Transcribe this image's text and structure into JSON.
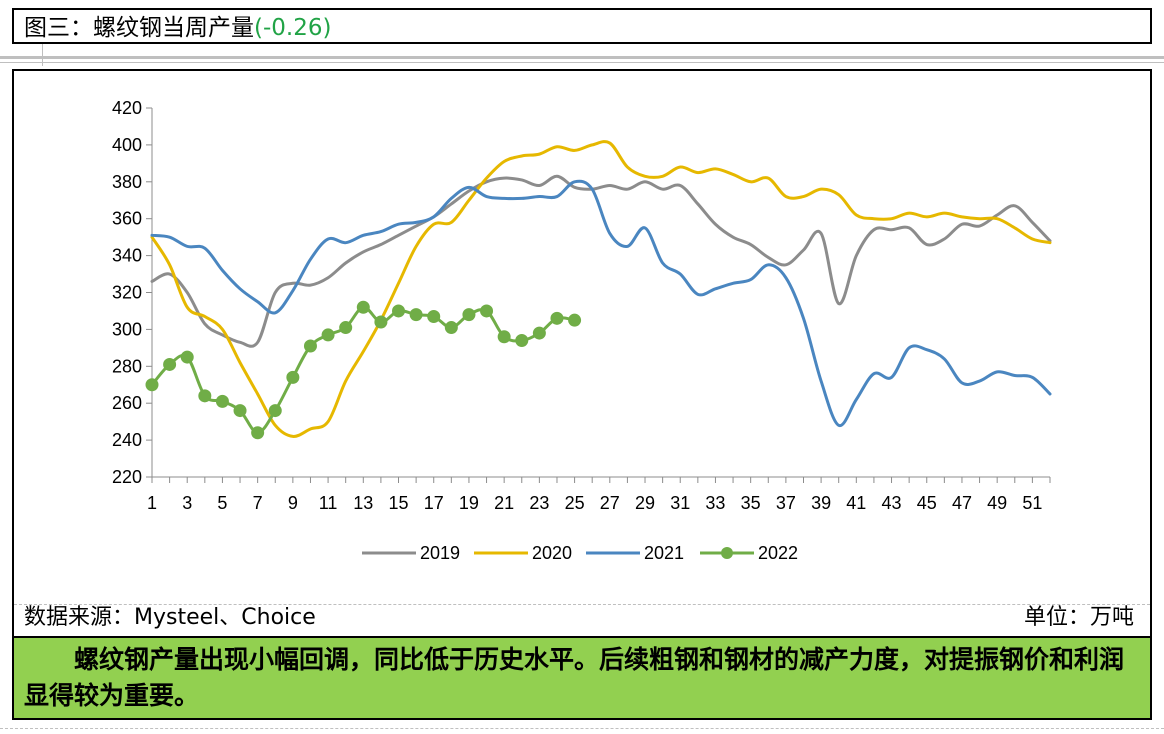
{
  "header": {
    "title": "图三：螺纹钢当周产量",
    "change": "(-0.26)",
    "change_color": "#21a346"
  },
  "footer": {
    "source": "数据来源：Mysteel、Choice",
    "unit": "单位：万吨"
  },
  "comment": {
    "text": "螺纹钢产量出现小幅回调，同比低于历史水平。后续粗钢和钢材的减产力度，对提振钢价和利润显得较为重要。",
    "background": "#92d050"
  },
  "chart_data": {
    "type": "line",
    "title": "",
    "xlabel": "",
    "ylabel": "",
    "ylim": [
      220,
      420
    ],
    "yticks": [
      220,
      240,
      260,
      280,
      300,
      320,
      340,
      360,
      380,
      400,
      420
    ],
    "xlim": [
      1,
      52
    ],
    "xticks": [
      1,
      3,
      5,
      7,
      9,
      11,
      13,
      15,
      17,
      19,
      21,
      23,
      25,
      27,
      29,
      31,
      33,
      35,
      37,
      39,
      41,
      43,
      45,
      47,
      49,
      51
    ],
    "grid": false,
    "legend": "bottom",
    "series": [
      {
        "name": "2019",
        "color": "#8c8c8c",
        "markers": false,
        "x": [
          1,
          2,
          3,
          4,
          5,
          6,
          7,
          8,
          9,
          10,
          11,
          12,
          13,
          14,
          15,
          16,
          17,
          18,
          19,
          20,
          21,
          22,
          23,
          24,
          25,
          26,
          27,
          28,
          29,
          30,
          31,
          32,
          33,
          34,
          35,
          36,
          37,
          38,
          39,
          40,
          41,
          42,
          43,
          44,
          45,
          46,
          47,
          48,
          49,
          50,
          51,
          52
        ],
        "values": [
          326,
          330,
          320,
          303,
          297,
          293,
          293,
          320,
          325,
          324,
          328,
          336,
          342,
          346,
          351,
          356,
          361,
          368,
          375,
          380,
          382,
          381,
          378,
          383,
          377,
          376,
          378,
          376,
          380,
          376,
          378,
          368,
          357,
          350,
          346,
          339,
          335,
          343,
          352,
          314,
          340,
          354,
          354,
          355,
          346,
          349,
          357,
          356,
          362,
          367,
          358,
          348
        ]
      },
      {
        "name": "2020",
        "color": "#e6b800",
        "markers": false,
        "x": [
          1,
          2,
          3,
          4,
          5,
          6,
          7,
          8,
          9,
          10,
          11,
          12,
          13,
          14,
          15,
          16,
          17,
          18,
          19,
          20,
          21,
          22,
          23,
          24,
          25,
          26,
          27,
          28,
          29,
          30,
          31,
          32,
          33,
          34,
          35,
          36,
          37,
          38,
          39,
          40,
          41,
          42,
          43,
          44,
          45,
          46,
          47,
          48,
          49,
          50,
          51,
          52
        ],
        "values": [
          350,
          335,
          312,
          307,
          300,
          282,
          265,
          248,
          242,
          246,
          250,
          272,
          288,
          305,
          325,
          345,
          357,
          358,
          370,
          382,
          391,
          394,
          395,
          399,
          397,
          400,
          401,
          388,
          383,
          383,
          388,
          385,
          387,
          384,
          380,
          382,
          372,
          372,
          376,
          373,
          362,
          360,
          360,
          363,
          361,
          363,
          361,
          360,
          360,
          355,
          349,
          347
        ]
      },
      {
        "name": "2021",
        "color": "#4a86c0",
        "markers": false,
        "x": [
          1,
          2,
          3,
          4,
          5,
          6,
          7,
          8,
          9,
          10,
          11,
          12,
          13,
          14,
          15,
          16,
          17,
          18,
          19,
          20,
          21,
          22,
          23,
          24,
          25,
          26,
          27,
          28,
          29,
          30,
          31,
          32,
          33,
          34,
          35,
          36,
          37,
          38,
          39,
          40,
          41,
          42,
          43,
          44,
          45,
          46,
          47,
          48,
          49,
          50,
          51,
          52
        ],
        "values": [
          351,
          350,
          345,
          344,
          332,
          322,
          315,
          309,
          321,
          338,
          349,
          347,
          351,
          353,
          357,
          358,
          361,
          371,
          377,
          372,
          371,
          371,
          372,
          372,
          380,
          376,
          352,
          345,
          355,
          336,
          330,
          319,
          322,
          325,
          327,
          335,
          328,
          306,
          272,
          248,
          262,
          276,
          274,
          290,
          289,
          284,
          271,
          272,
          277,
          275,
          274,
          265
        ]
      },
      {
        "name": "2022",
        "color": "#70ad47",
        "markers": true,
        "x": [
          1,
          2,
          3,
          4,
          5,
          6,
          7,
          8,
          9,
          10,
          11,
          12,
          13,
          14,
          15,
          16,
          17,
          18,
          19,
          20,
          21,
          22,
          23,
          24,
          25
        ],
        "values": [
          270,
          281,
          285,
          264,
          261,
          256,
          244,
          256,
          274,
          291,
          297,
          301,
          312,
          304,
          310,
          308,
          307,
          301,
          308,
          310,
          296,
          294,
          298,
          306,
          305
        ]
      }
    ]
  }
}
